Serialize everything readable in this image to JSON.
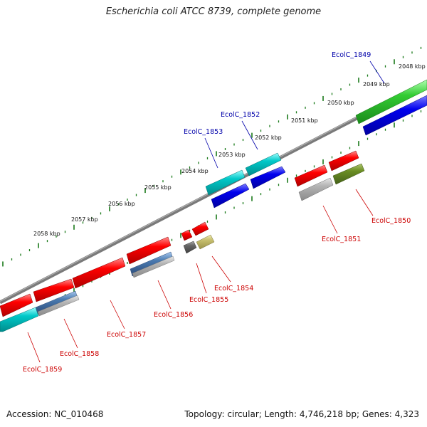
{
  "title": "Escherichia coli ATCC 8739, complete genome",
  "footer": {
    "accession": "Accession: NC_010468",
    "topology": "Topology: circular; Length: 4,746,218 bp; Genes: 4,323"
  },
  "ticks": [
    {
      "label": "2048 kbp"
    },
    {
      "label": "2049 kbp"
    },
    {
      "label": "2050 kbp"
    },
    {
      "label": "2051 kbp"
    },
    {
      "label": "2052 kbp"
    },
    {
      "label": "2053 kbp"
    },
    {
      "label": "2054 kbp"
    },
    {
      "label": "2055 kbp"
    },
    {
      "label": "2056 kbp"
    },
    {
      "label": "2057 kbp"
    },
    {
      "label": "2058 kbp"
    }
  ],
  "genes": [
    {
      "name": "EcolC_1849",
      "strand": "forward"
    },
    {
      "name": "EcolC_1850",
      "strand": "reverse"
    },
    {
      "name": "EcolC_1851",
      "strand": "reverse"
    },
    {
      "name": "EcolC_1852",
      "strand": "forward"
    },
    {
      "name": "EcolC_1853",
      "strand": "forward"
    },
    {
      "name": "EcolC_1854",
      "strand": "reverse"
    },
    {
      "name": "EcolC_1855",
      "strand": "reverse"
    },
    {
      "name": "EcolC_1856",
      "strand": "reverse"
    },
    {
      "name": "EcolC_1857",
      "strand": "reverse"
    },
    {
      "name": "EcolC_1858",
      "strand": "reverse"
    },
    {
      "name": "EcolC_1859",
      "strand": "reverse"
    }
  ],
  "colors": {
    "forward_label": "#0000aa",
    "reverse_label": "#cc0000",
    "backbone": "#808080",
    "ticks": "#1a7a1a",
    "red": "#ff0000",
    "cyan": "#00c8c8",
    "blue": "#0000ee",
    "green": "#33cc33",
    "olive": "#6b8e23",
    "gray": "#b4b4b4",
    "steel": "#4a7ab0",
    "darkgray": "#666666",
    "khaki": "#c8c070"
  }
}
